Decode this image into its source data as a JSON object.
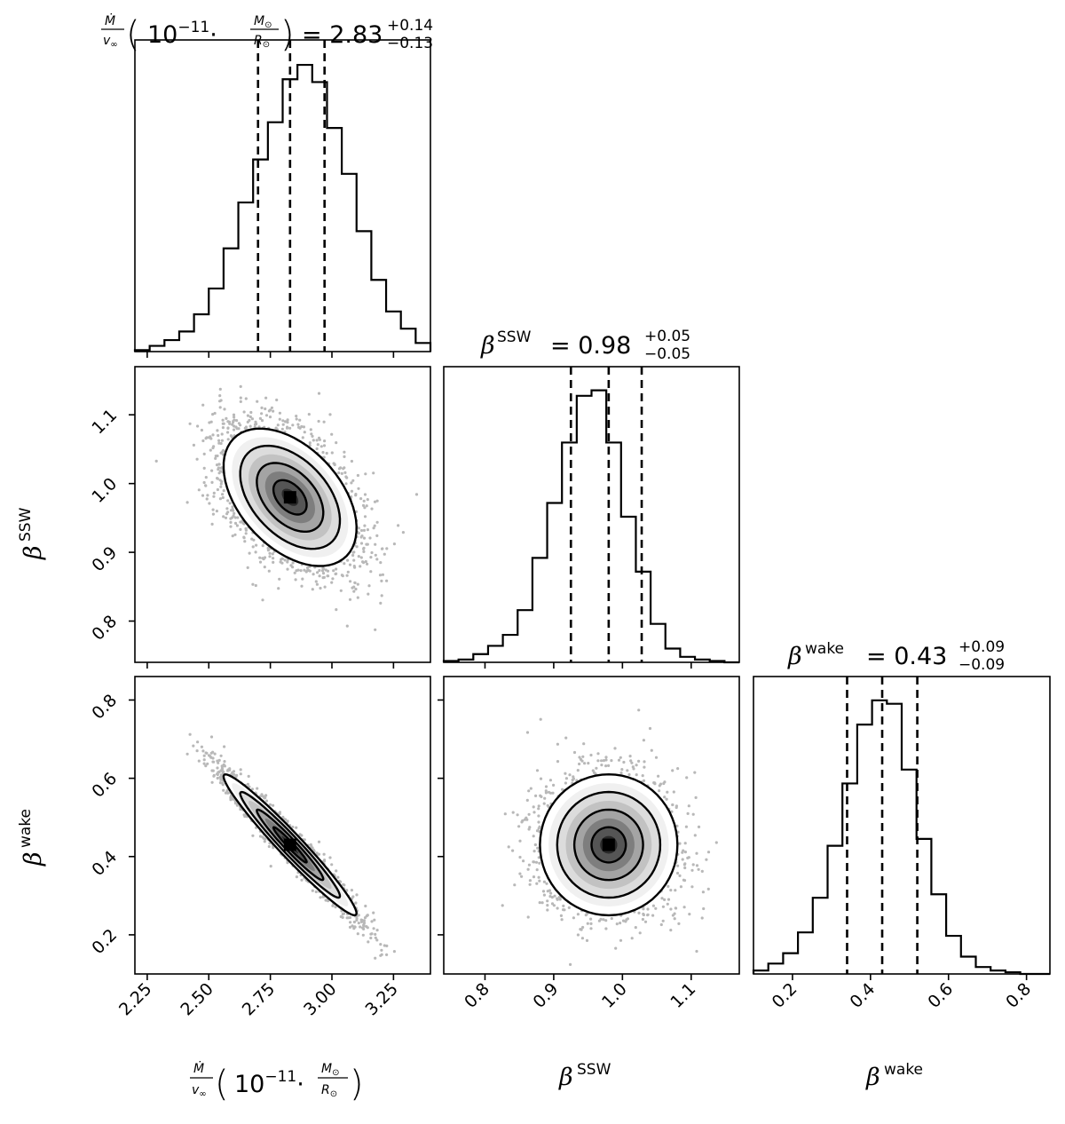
{
  "chart_data": {
    "type": "corner",
    "parameters": [
      {
        "key": "mdot",
        "label": "Ṁ/v∞ (10⁻¹¹·M⊙/R⊙)",
        "title": "Ṁ/v∞ (10⁻¹¹·M⊙/R⊙) = 2.83 +0.14 −0.13",
        "median": 2.83,
        "err_plus": 0.14,
        "err_minus": 0.13,
        "quantiles": [
          2.7,
          2.83,
          2.97
        ],
        "range": [
          2.2,
          3.4
        ],
        "ticks": [
          "2.25",
          "2.50",
          "2.75",
          "3.00",
          "3.25"
        ],
        "hist_edges_start": 2.2,
        "hist_bin_width": 0.06,
        "hist_counts": [
          0.5,
          2,
          4,
          7,
          13,
          22,
          36,
          52,
          67,
          80,
          95,
          100,
          94,
          78,
          62,
          42,
          25,
          14,
          8,
          3,
          1
        ]
      },
      {
        "key": "beta_ssw",
        "label": "βSSW",
        "title": "βSSW = 0.98 +0.05 −0.05",
        "median": 0.98,
        "err_plus": 0.05,
        "err_minus": 0.05,
        "quantiles": [
          0.925,
          0.98,
          1.028
        ],
        "range": [
          0.74,
          1.17
        ],
        "ticks": [
          "0.8",
          "0.9",
          "1.0",
          "1.1"
        ],
        "hist_edges_start": 0.74,
        "hist_bin_width": 0.0215,
        "hist_counts": [
          0.5,
          1,
          3,
          6,
          10,
          19,
          38,
          58,
          80,
          97,
          99,
          80,
          53,
          33,
          14,
          5,
          2,
          1,
          0.5,
          0
        ]
      },
      {
        "key": "beta_wake",
        "label": "βwake",
        "title": "βwake = 0.43 +0.09 −0.09",
        "median": 0.43,
        "err_plus": 0.09,
        "err_minus": 0.09,
        "quantiles": [
          0.34,
          0.43,
          0.52
        ],
        "range": [
          0.1,
          0.86
        ],
        "ticks": [
          "0.2",
          "0.4",
          "0.6",
          "0.8"
        ],
        "hist_edges_start": 0.1,
        "hist_bin_width": 0.038,
        "hist_counts": [
          1,
          3,
          6,
          12,
          22,
          37,
          55,
          72,
          79,
          78,
          59,
          39,
          23,
          11,
          5,
          2,
          1,
          0.5,
          0,
          0
        ]
      }
    ],
    "pairs": [
      {
        "x": "mdot",
        "y": "beta_ssw",
        "correlation": -0.45
      },
      {
        "x": "mdot",
        "y": "beta_wake",
        "correlation": -0.97
      },
      {
        "x": "beta_ssw",
        "y": "beta_wake",
        "correlation": 0.0
      }
    ],
    "quantile_line_style": "dashed",
    "contour_levels_sigma": [
      0.5,
      1.0,
      1.5,
      2.0
    ]
  }
}
